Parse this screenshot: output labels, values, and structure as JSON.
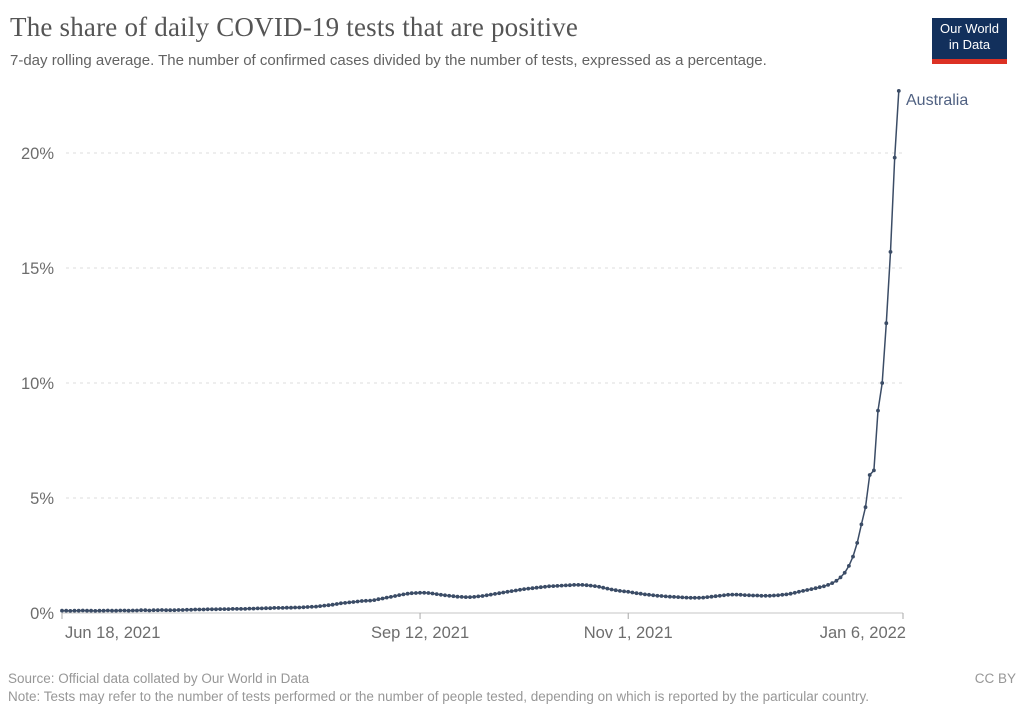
{
  "header": {
    "title": "The share of daily COVID-19 tests that are positive",
    "subtitle": "7-day rolling average. The number of confirmed cases divided by the number of tests, expressed as a percentage.",
    "logo": {
      "line1": "Our World",
      "line2": "in Data"
    }
  },
  "footer": {
    "source": "Source: Official data collated by Our World in Data",
    "note": "Note: Tests may refer to the number of tests performed or the number of people tested, depending on which is reported by the particular country.",
    "license": "CC BY"
  },
  "colors": {
    "series_line": "#3b4c66",
    "series_label": "#506182",
    "gridline": "#dcdcdc",
    "axis_line": "#c6c6c6",
    "tick_mark": "#a8a8a8",
    "tick_text": "#6d6d6d",
    "logo_navy": "#12305c",
    "logo_red": "#dc3124"
  },
  "chart_data": {
    "type": "line",
    "title": "The share of daily COVID-19 tests that are positive",
    "y_unit": "%",
    "ylim": [
      0,
      23
    ],
    "ytick_values": [
      0,
      5,
      10,
      15,
      20
    ],
    "ytick_labels": [
      "0%",
      "5%",
      "10%",
      "15%",
      "20%"
    ],
    "grid": "horizontal-dashed",
    "legend": "line-end-label",
    "x_start_date": "2021-06-18",
    "x_end_date": "2022-01-05",
    "x_axis_end_date": "2022-01-06",
    "x_total_days": 202,
    "frequency": "daily",
    "xticks": [
      {
        "label": "Jun 18, 2021",
        "day": 0
      },
      {
        "label": "Sep 12, 2021",
        "day": 86
      },
      {
        "label": "Nov 1, 2021",
        "day": 136
      },
      {
        "label": "Jan 6, 2022",
        "day": 202
      }
    ],
    "series": [
      {
        "name": "Australia",
        "values": [
          0.1,
          0.1,
          0.09,
          0.1,
          0.1,
          0.11,
          0.1,
          0.1,
          0.09,
          0.1,
          0.1,
          0.11,
          0.1,
          0.1,
          0.11,
          0.11,
          0.1,
          0.11,
          0.11,
          0.12,
          0.12,
          0.11,
          0.12,
          0.12,
          0.13,
          0.12,
          0.12,
          0.12,
          0.13,
          0.13,
          0.14,
          0.14,
          0.15,
          0.15,
          0.15,
          0.16,
          0.16,
          0.16,
          0.17,
          0.17,
          0.17,
          0.18,
          0.18,
          0.18,
          0.18,
          0.19,
          0.19,
          0.2,
          0.2,
          0.21,
          0.21,
          0.22,
          0.22,
          0.22,
          0.23,
          0.23,
          0.24,
          0.24,
          0.25,
          0.26,
          0.27,
          0.28,
          0.3,
          0.32,
          0.34,
          0.36,
          0.39,
          0.42,
          0.44,
          0.46,
          0.48,
          0.5,
          0.52,
          0.53,
          0.54,
          0.56,
          0.6,
          0.63,
          0.67,
          0.7,
          0.74,
          0.78,
          0.81,
          0.84,
          0.86,
          0.87,
          0.88,
          0.88,
          0.87,
          0.85,
          0.82,
          0.79,
          0.77,
          0.75,
          0.73,
          0.71,
          0.7,
          0.69,
          0.69,
          0.7,
          0.72,
          0.74,
          0.77,
          0.8,
          0.83,
          0.86,
          0.89,
          0.92,
          0.95,
          0.98,
          1.01,
          1.04,
          1.06,
          1.08,
          1.1,
          1.12,
          1.14,
          1.16,
          1.17,
          1.18,
          1.19,
          1.2,
          1.21,
          1.22,
          1.22,
          1.22,
          1.21,
          1.19,
          1.17,
          1.14,
          1.1,
          1.06,
          1.02,
          0.99,
          0.96,
          0.94,
          0.92,
          0.89,
          0.86,
          0.84,
          0.81,
          0.79,
          0.77,
          0.75,
          0.74,
          0.72,
          0.71,
          0.7,
          0.69,
          0.68,
          0.67,
          0.66,
          0.66,
          0.66,
          0.67,
          0.69,
          0.71,
          0.73,
          0.75,
          0.77,
          0.79,
          0.8,
          0.8,
          0.79,
          0.78,
          0.77,
          0.76,
          0.76,
          0.75,
          0.75,
          0.75,
          0.76,
          0.77,
          0.79,
          0.81,
          0.84,
          0.88,
          0.92,
          0.96,
          1.0,
          1.04,
          1.08,
          1.12,
          1.16,
          1.22,
          1.3,
          1.4,
          1.55,
          1.75,
          2.05,
          2.45,
          3.05,
          3.85,
          4.6,
          6.0,
          6.2,
          8.8,
          10.0,
          12.6,
          15.7,
          19.8,
          22.7
        ]
      }
    ]
  }
}
